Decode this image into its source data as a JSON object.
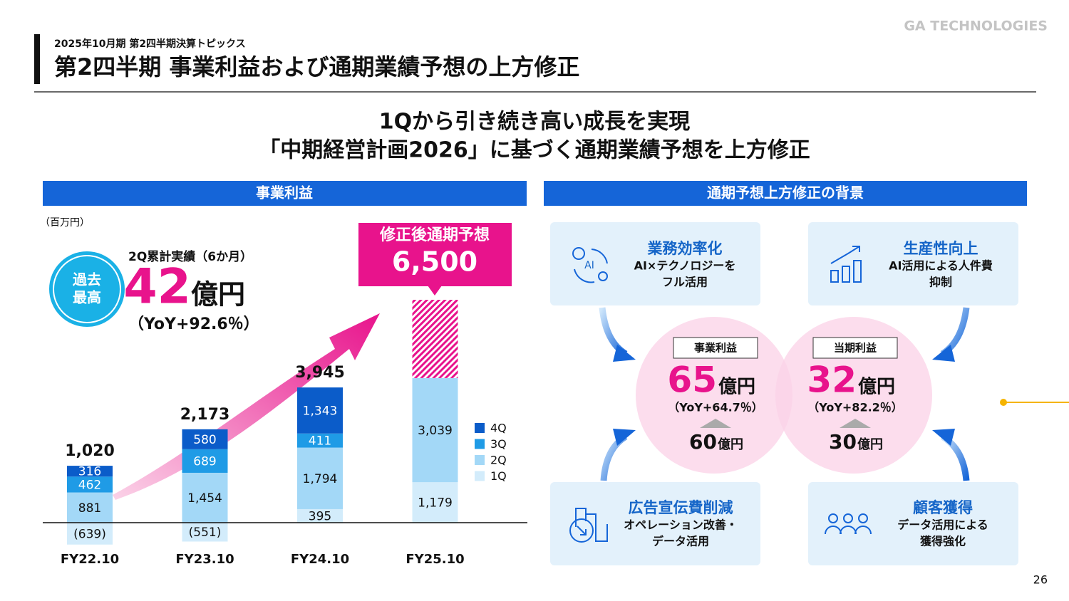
{
  "header": {
    "subtitle": "2025年10月期 第2四半期決算トピックス",
    "title": "第2四半期 事業利益および通期業績予想の上方修正",
    "logo": "GA TECHNOLOGIES"
  },
  "headline": [
    "1Qから引き続き高い成長を実現",
    "「中期経営計画2026」に基づく通期業績予想を上方修正"
  ],
  "left_panel": {
    "title": "事業利益",
    "unit": "（百万円）",
    "badge": [
      "過去",
      "最高"
    ],
    "highlight": {
      "label": "2Q累計実績（6か月）",
      "value": 42,
      "unit": "億円",
      "yoy": "（YoY+92.6％）"
    }
  },
  "chart_data": {
    "type": "bar",
    "stacked": true,
    "categories": [
      "FY22.10",
      "FY23.10",
      "FY24.10",
      "FY25.10"
    ],
    "series": [
      {
        "name": "1Q",
        "color": "#d3ecfb",
        "values": [
          -639,
          -551,
          395,
          1179
        ],
        "value_labels": [
          "(639)",
          "(551)",
          "395",
          "1,179"
        ]
      },
      {
        "name": "2Q",
        "color": "#a3d8f7",
        "values": [
          881,
          1454,
          1794,
          3039
        ],
        "value_labels": [
          "881",
          "1,454",
          "1,794",
          "3,039"
        ]
      },
      {
        "name": "3Q",
        "color": "#1f9be6",
        "values": [
          462,
          689,
          411,
          null
        ],
        "value_labels": [
          "462",
          "689",
          "411",
          null
        ]
      },
      {
        "name": "4Q",
        "color": "#0b5cc9",
        "values": [
          316,
          580,
          1343,
          null
        ],
        "value_labels": [
          "316",
          "580",
          "1,343",
          null
        ]
      }
    ],
    "totals": {
      "values": [
        1020,
        2173,
        3945,
        null
      ],
      "value_labels": [
        "1,020",
        "2,173",
        "3,945",
        null
      ]
    },
    "forecast": {
      "label": "修正後通期予想",
      "value": 6500,
      "value_label": "6,500",
      "color": "#e8138c"
    },
    "ylim": [
      -800,
      6500
    ]
  },
  "right_panel": {
    "title": "通期予想上方修正の背景",
    "factors": [
      {
        "title": "業務効率化",
        "lines": [
          "AI×テクノロジーを",
          "フル活用"
        ],
        "icon_text": "AI"
      },
      {
        "title": "生産性向上",
        "lines": [
          "AI活用による人件費",
          "抑制"
        ]
      },
      {
        "title": "広告宣伝費削減",
        "lines": [
          "オペレーション改善・",
          "データ活用"
        ]
      },
      {
        "title": "顧客獲得",
        "lines": [
          "データ活用による",
          "獲得強化"
        ]
      }
    ],
    "results": [
      {
        "label": "事業利益",
        "value": 65,
        "unit": "億円",
        "yoy": "（YoY+64.7％）",
        "previous": 60,
        "previous_unit": "億円"
      },
      {
        "label": "当期利益",
        "value": 32,
        "unit": "億円",
        "yoy": "（YoY+82.2％）",
        "previous": 30,
        "previous_unit": "億円"
      }
    ]
  },
  "page_number": "26"
}
